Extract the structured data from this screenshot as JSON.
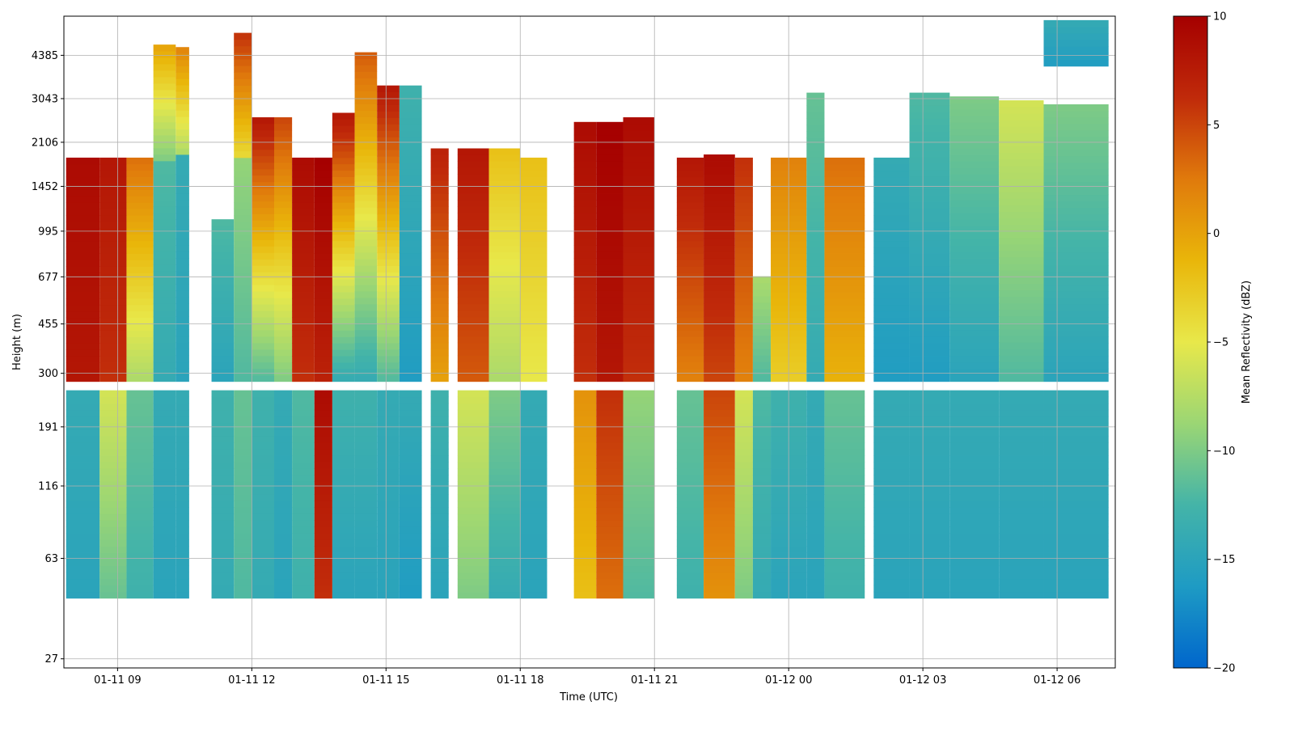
{
  "chart_data": {
    "type": "heatmap",
    "title": "",
    "xlabel": "Time (UTC)",
    "ylabel": "Height (m)",
    "colorbar_label": "Mean Reflectivity (dBZ)",
    "x_ticks": [
      "01-11 09",
      "01-11 12",
      "01-11 15",
      "01-11 18",
      "01-11 21",
      "01-12 00",
      "01-12 03",
      "01-12 06"
    ],
    "x_tick_hours": [
      9,
      12,
      15,
      18,
      21,
      24,
      27,
      30
    ],
    "x_range_hours": [
      7.8,
      31.3
    ],
    "y_scale": "log",
    "y_ticks": [
      "27",
      "63",
      "116",
      "191",
      "300",
      "455",
      "677",
      "995",
      "1452",
      "2106",
      "3043",
      "4385"
    ],
    "y_tick_values": [
      27,
      63,
      116,
      191,
      300,
      455,
      677,
      995,
      1452,
      2106,
      3043,
      4385
    ],
    "y_range": [
      25,
      6100
    ],
    "color_range": [
      -20,
      10
    ],
    "colorbar_ticks": [
      "10",
      "5",
      "0",
      "−5",
      "−10",
      "−15",
      "−20"
    ],
    "colorbar_tick_values": [
      10,
      5,
      0,
      -5,
      -10,
      -15,
      -20
    ],
    "colormap": [
      "#0066cc",
      "#1e9bc4",
      "#44b4a8",
      "#9bd674",
      "#e8e84a",
      "#e9b60a",
      "#e07a0c",
      "#c02a0a",
      "#a50000"
    ],
    "grid": true,
    "columns": [
      {
        "t0": 7.85,
        "t1": 8.6,
        "segments": [
          [
            280,
            1850,
            8,
            9
          ],
          [
            45,
            260,
            -15,
            -14
          ]
        ]
      },
      {
        "t0": 8.6,
        "t1": 9.2,
        "segments": [
          [
            280,
            1850,
            6,
            8
          ],
          [
            45,
            260,
            -11,
            -6
          ]
        ]
      },
      {
        "t0": 9.2,
        "t1": 9.8,
        "segments": [
          [
            280,
            1850,
            -8,
            3
          ],
          [
            45,
            260,
            -13,
            -11
          ]
        ]
      },
      {
        "t0": 9.8,
        "t1": 10.3,
        "segments": [
          [
            280,
            1800,
            -14,
            -12
          ],
          [
            1800,
            4800,
            -10,
            0
          ],
          [
            45,
            260,
            -15,
            -14
          ]
        ]
      },
      {
        "t0": 10.3,
        "t1": 10.6,
        "segments": [
          [
            280,
            1900,
            -15,
            -14
          ],
          [
            1900,
            4700,
            -8,
            2
          ],
          [
            45,
            260,
            -15,
            -14
          ]
        ]
      },
      {
        "t0": 11.1,
        "t1": 11.6,
        "segments": [
          [
            280,
            1100,
            -15,
            -12
          ],
          [
            45,
            260,
            -14,
            -13
          ]
        ]
      },
      {
        "t0": 11.6,
        "t1": 12.0,
        "segments": [
          [
            280,
            1850,
            -12,
            -9
          ],
          [
            1850,
            5300,
            -4,
            6
          ],
          [
            45,
            260,
            -12,
            -11
          ]
        ]
      },
      {
        "t0": 12.0,
        "t1": 12.5,
        "segments": [
          [
            280,
            2600,
            -12,
            8
          ],
          [
            45,
            260,
            -14,
            -13
          ]
        ]
      },
      {
        "t0": 12.5,
        "t1": 12.9,
        "segments": [
          [
            280,
            2600,
            -10,
            5
          ],
          [
            45,
            260,
            -15,
            -14
          ]
        ]
      },
      {
        "t0": 12.9,
        "t1": 13.4,
        "segments": [
          [
            280,
            1850,
            6,
            9
          ],
          [
            45,
            260,
            -13,
            -12
          ]
        ]
      },
      {
        "t0": 13.4,
        "t1": 13.8,
        "segments": [
          [
            280,
            1850,
            7,
            10
          ],
          [
            45,
            260,
            6,
            9
          ]
        ]
      },
      {
        "t0": 13.8,
        "t1": 14.3,
        "segments": [
          [
            280,
            2700,
            -14,
            8
          ],
          [
            45,
            260,
            -15,
            -13
          ]
        ]
      },
      {
        "t0": 14.3,
        "t1": 14.8,
        "segments": [
          [
            280,
            4500,
            -14,
            4
          ],
          [
            45,
            260,
            -15,
            -13
          ]
        ]
      },
      {
        "t0": 14.8,
        "t1": 15.3,
        "segments": [
          [
            280,
            3400,
            -12,
            8
          ],
          [
            45,
            260,
            -15,
            -14
          ]
        ]
      },
      {
        "t0": 15.3,
        "t1": 15.8,
        "segments": [
          [
            280,
            3400,
            -16,
            -13
          ],
          [
            45,
            260,
            -16,
            -14
          ]
        ]
      },
      {
        "t0": 16.0,
        "t1": 16.4,
        "segments": [
          [
            280,
            2000,
            0,
            7
          ],
          [
            45,
            260,
            -15,
            -13
          ]
        ]
      },
      {
        "t0": 16.6,
        "t1": 17.3,
        "segments": [
          [
            280,
            2000,
            4,
            8
          ],
          [
            45,
            260,
            -10,
            -6
          ]
        ]
      },
      {
        "t0": 17.3,
        "t1": 18.0,
        "segments": [
          [
            280,
            2000,
            -8,
            -2
          ],
          [
            45,
            260,
            -14,
            -10
          ]
        ]
      },
      {
        "t0": 18.0,
        "t1": 18.6,
        "segments": [
          [
            280,
            1850,
            -5,
            -2
          ],
          [
            45,
            260,
            -15,
            -14
          ]
        ]
      },
      {
        "t0": 19.2,
        "t1": 19.7,
        "segments": [
          [
            280,
            2500,
            6,
            9
          ],
          [
            45,
            260,
            -2,
            1
          ]
        ]
      },
      {
        "t0": 19.7,
        "t1": 20.3,
        "segments": [
          [
            280,
            2500,
            8,
            10
          ],
          [
            45,
            260,
            3,
            6
          ]
        ]
      },
      {
        "t0": 20.3,
        "t1": 21.0,
        "segments": [
          [
            280,
            2600,
            6,
            9
          ],
          [
            45,
            260,
            -12,
            -9
          ]
        ]
      },
      {
        "t0": 21.5,
        "t1": 22.1,
        "segments": [
          [
            280,
            1850,
            2,
            8
          ],
          [
            45,
            260,
            -13,
            -11
          ]
        ]
      },
      {
        "t0": 22.1,
        "t1": 22.8,
        "segments": [
          [
            280,
            1900,
            5,
            9
          ],
          [
            45,
            260,
            1,
            5
          ]
        ]
      },
      {
        "t0": 22.8,
        "t1": 23.2,
        "segments": [
          [
            280,
            1850,
            2,
            6
          ],
          [
            45,
            260,
            -10,
            -6
          ]
        ]
      },
      {
        "t0": 23.2,
        "t1": 23.6,
        "segments": [
          [
            280,
            680,
            -12,
            -8
          ],
          [
            45,
            260,
            -14,
            -12
          ]
        ]
      },
      {
        "t0": 23.6,
        "t1": 24.4,
        "segments": [
          [
            280,
            1850,
            -3,
            2
          ],
          [
            45,
            260,
            -15,
            -13
          ]
        ]
      },
      {
        "t0": 24.4,
        "t1": 24.8,
        "segments": [
          [
            280,
            3200,
            -14,
            -11
          ],
          [
            45,
            260,
            -15,
            -14
          ]
        ]
      },
      {
        "t0": 24.8,
        "t1": 25.7,
        "segments": [
          [
            280,
            1850,
            -1,
            3
          ],
          [
            45,
            260,
            -13,
            -11
          ]
        ]
      },
      {
        "t0": 25.9,
        "t1": 26.7,
        "segments": [
          [
            280,
            1850,
            -16,
            -14
          ],
          [
            45,
            260,
            -15,
            -14
          ]
        ]
      },
      {
        "t0": 26.7,
        "t1": 27.6,
        "segments": [
          [
            280,
            3200,
            -16,
            -12
          ],
          [
            45,
            260,
            -15,
            -14
          ]
        ]
      },
      {
        "t0": 27.6,
        "t1": 28.7,
        "segments": [
          [
            280,
            3100,
            -15,
            -10
          ],
          [
            45,
            260,
            -15,
            -14
          ]
        ]
      },
      {
        "t0": 28.7,
        "t1": 29.7,
        "segments": [
          [
            280,
            3000,
            -12,
            -6
          ],
          [
            45,
            260,
            -15,
            -14
          ]
        ]
      },
      {
        "t0": 29.7,
        "t1": 31.15,
        "segments": [
          [
            280,
            2900,
            -15,
            -10
          ],
          [
            4000,
            5900,
            -16,
            -14
          ],
          [
            45,
            260,
            -15,
            -14
          ]
        ]
      }
    ]
  }
}
